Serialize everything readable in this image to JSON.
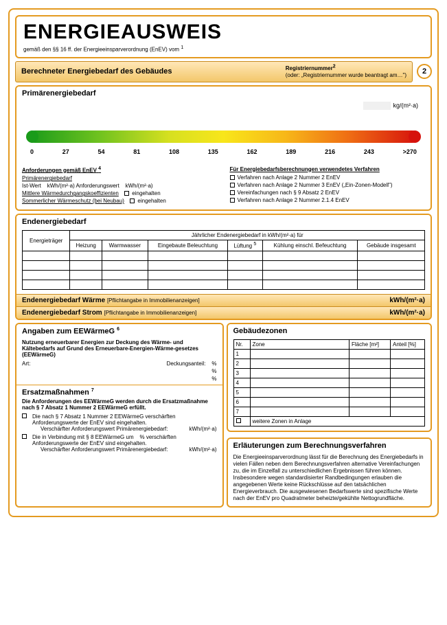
{
  "title": "ENERGIEAUSWEIS",
  "subtitle_pre": "gemäß den §§ 16 ff. der Energieeinsparverordnung (EnEV) vom ",
  "sup1": "1",
  "header": {
    "main": "Berechneter Energiebedarf des Gebäudes",
    "reg_label": "Registriernummer",
    "reg_sup": "2",
    "reg_note": "(oder: „Registriernummer wurde beantragt am…\")",
    "page": "2"
  },
  "primary": {
    "title": "Primärenergiebedarf",
    "unit": "kg/(m²·a)",
    "ticks": [
      "0",
      "27",
      "54",
      "81",
      "108",
      "135",
      "162",
      "189",
      "216",
      "243",
      ">270"
    ],
    "req_hd": "Anforderungen gemäß EnEV",
    "req_sup": "4",
    "req_r1_lbl": "Primärenergiebedarf",
    "req_r2_a": "Ist-Wert",
    "req_r2_b": "kWh/(m²·a) Anforderungswert",
    "req_r2_c": "kWh/(m²·a)",
    "req_r3": "Mittlere Wärmedurchgangskoeffizienten",
    "req_r3_v": "eingehalten",
    "req_r4": "Sommerlicher Wärmeschutz (bei Neubau)",
    "req_r4_v": "eingehalten",
    "proc_hd": "Für Energiebedarfsberechnungen verwendetes Verfahren",
    "proc_items": [
      "Verfahren nach Anlage 2 Nummer 2 EnEV",
      "Verfahren nach Anlage 2 Nummer 3 EnEV („Ein-Zonen-Modell\")",
      "Vereinfachungen nach § 9 Absatz 2 EnEV",
      "Verfahren nach Anlage 2 Nummer 2.1.4 EnEV"
    ]
  },
  "end": {
    "title": "Endenergiebedarf",
    "span_label": "Jährlicher Endenergiebedarf in kWh/(m²·a) für",
    "cols": [
      "Energieträger",
      "Heizung",
      "Warmwasser",
      "Eingebaute Beleuchtung",
      "Lüftung",
      "Kühlung einschl. Befeuchtung",
      "Gebäude insgesamt"
    ],
    "lueftung_sup": "5",
    "bar1_a": "Endenergiebedarf Wärme",
    "bar1_b": "[Pflichtangabe in Immobilienanzeigen]",
    "bar1_u": "kWh/(m²·a)",
    "bar2_a": "Endenergiebedarf Strom",
    "bar2_b": "[Pflichtangabe in Immobilienanzeigen]",
    "bar2_u": "kWh/(m²·a)"
  },
  "eewg": {
    "title": "Angaben zum EEWärmeG",
    "title_sup": "6",
    "intro": "Nutzung erneuerbarer Energien zur Deckung des Wärme- und Kältebedarfs auf Grund des Erneuerbare-Energien-Wärme-gesetzes (EEWärmeG)",
    "art": "Art:",
    "deck": "Deckungsanteil:",
    "pct": "%",
    "ersatz_title": "Ersatzmaßnahmen",
    "ersatz_sup": "7",
    "ersatz_intro": "Die Anforderungen des EEWärmeG werden durch die Ersatzmaßnahme nach § 7 Absatz 1 Nummer 2 EEWärmeG erfüllt.",
    "e1": "Die nach § 7 Absatz 1 Nummer 2 EEWärmeG verschärften Anforderungswerte der EnEV sind eingehalten.",
    "e1_sub_l": "Verschärfter Anforderungswert Primärenergiebedarf:",
    "e1_sub_u": "kWh/(m²·a)",
    "e2_a": "Die in Verbindung mit § 8 EEWärmeG um",
    "e2_b": "% verschärften Anforderungswerte der EnEV sind eingehalten.",
    "e2_sub_l": "Verschärfter Anforderungswert Primärenergiebedarf:",
    "e2_sub_u": "kWh/(m²·a)"
  },
  "zones": {
    "title": "Gebäudezonen",
    "cols": [
      "Nr.",
      "Zone",
      "Fläche [m²]",
      "Anteil [%]"
    ],
    "rows": [
      "1",
      "2",
      "3",
      "4",
      "5",
      "6",
      "7"
    ],
    "last_row": "weitere Zonen in Anlage"
  },
  "erl": {
    "title": "Erläuterungen zum Berechnungsverfahren",
    "text": "Die Energieeinsparverordnung lässt für die Berechnung des Energiebedarfs in vielen Fällen neben dem Berechnungsverfahren alternative Vereinfachungen zu, die im Einzelfall zu unterschiedlichen Ergebnissen führen können. Insbesondere wegen standardisierter Randbedingungen erlauben die angegebenen Werte keine Rückschlüsse auf den tatsächlichen Energieverbrauch. Die ausgewiesenen Bedarfswerte sind spezifische Werte nach der EnEV pro Quadratmeter beheizte/gekühlte Nettogrundfläche."
  }
}
